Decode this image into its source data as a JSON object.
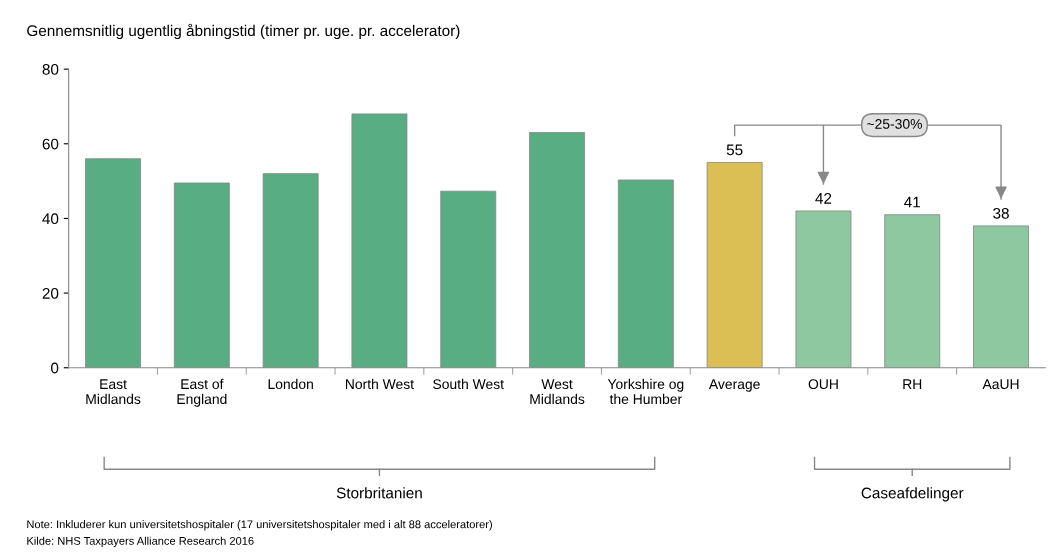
{
  "chart_data": {
    "type": "bar",
    "title": "Gennemsnitlig ugentlig åbningstid (timer pr. uge. pr. accelerator)",
    "categories": [
      "East\nMidlands",
      "East of\nEngland",
      "London",
      "North West",
      "South West",
      "West\nMidlands",
      "Yorkshire og\nthe Humber",
      "Average",
      "OUH",
      "RH",
      "AaUH"
    ],
    "values": [
      56,
      49.5,
      52,
      68,
      47.3,
      63,
      50.3,
      55,
      42,
      41,
      38
    ],
    "colors": [
      "#58ad82",
      "#58ad82",
      "#58ad82",
      "#58ad82",
      "#58ad82",
      "#58ad82",
      "#58ad82",
      "#dbbf55",
      "#8ec8a1",
      "#8ec8a1",
      "#8ec8a1"
    ],
    "value_labels": [
      null,
      null,
      null,
      null,
      null,
      null,
      null,
      "55",
      "42",
      "41",
      "38"
    ],
    "ylim": [
      0,
      80
    ],
    "yticks": [
      0,
      20,
      40,
      60,
      80
    ],
    "grid": false,
    "legend": false,
    "annotations": [
      "~25-30%",
      "Storbritanien",
      "Caseafdelinger",
      "Note: Inkluderer kun universitetshospitaler (17 universitetshospitaler med i alt 88 acceleratorer)",
      "Kilde: NHS Taxpayers Alliance Research 2016"
    ]
  }
}
